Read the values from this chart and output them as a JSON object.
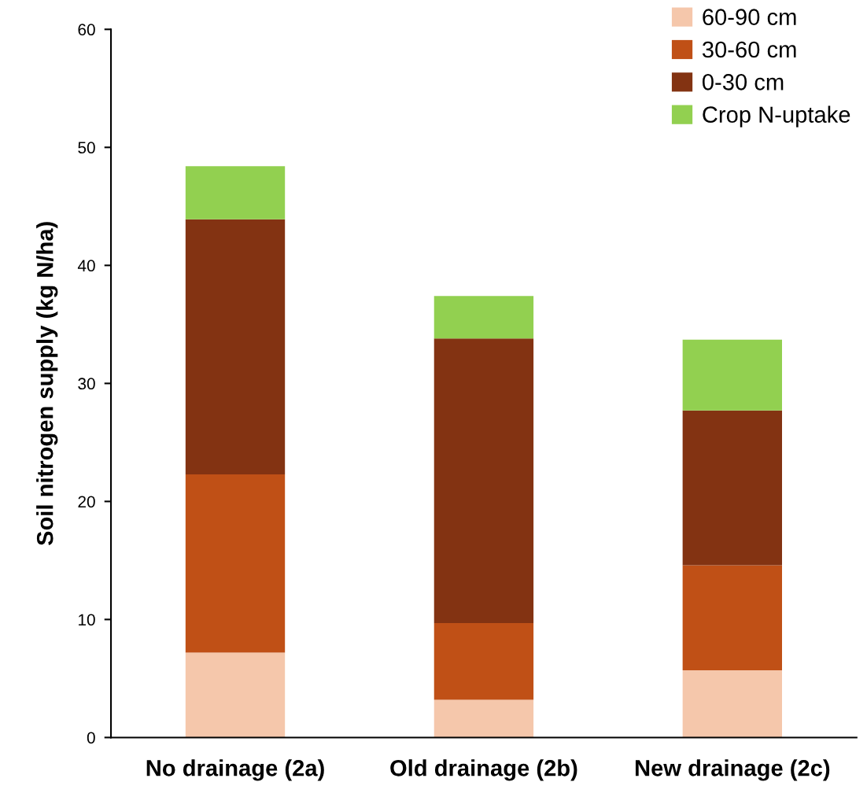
{
  "chart_data": {
    "type": "bar",
    "stacked": true,
    "ylabel": "Soil nitrogen supply (kg N/ha)",
    "categories": [
      "No drainage (2a)",
      "Old drainage (2b)",
      "New drainage (2c)"
    ],
    "series": [
      {
        "name": "60-90 cm",
        "color": "#f5c7ab",
        "values": [
          7.2,
          3.2,
          5.7
        ]
      },
      {
        "name": "30-60 cm",
        "color": "#c05016",
        "values": [
          15.1,
          6.5,
          8.9
        ]
      },
      {
        "name": "0-30 cm",
        "color": "#833312",
        "values": [
          21.6,
          24.1,
          13.1
        ]
      },
      {
        "name": "Crop N-uptake",
        "color": "#92d050",
        "values": [
          4.5,
          3.6,
          6.0
        ]
      }
    ],
    "ylim": [
      0,
      60
    ],
    "yticks": [
      0,
      10,
      20,
      30,
      40,
      50,
      60
    ],
    "grid": false,
    "legend": "top right"
  }
}
